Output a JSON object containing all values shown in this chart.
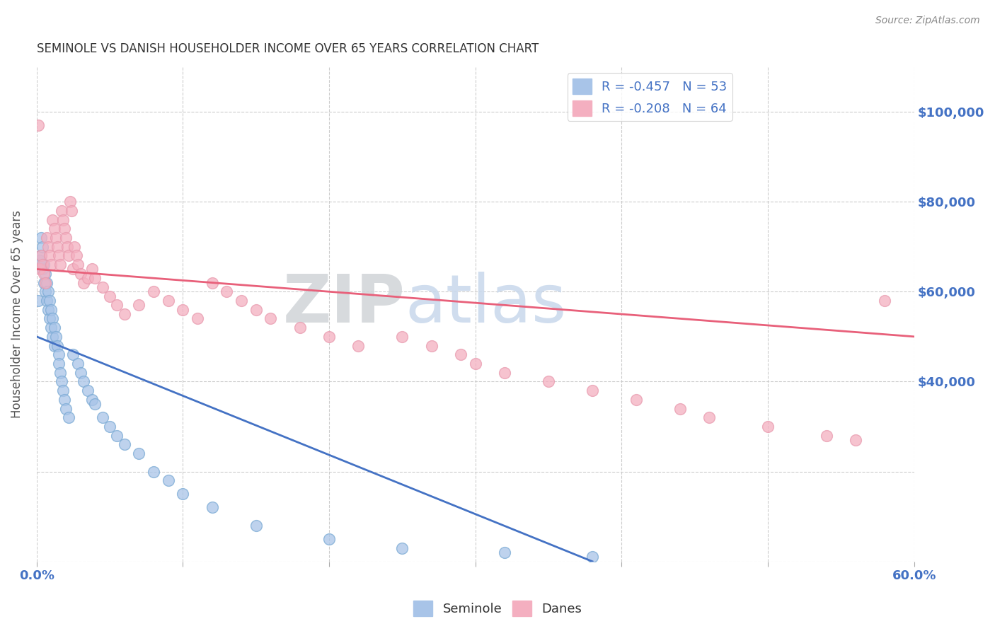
{
  "title": "SEMINOLE VS DANISH HOUSEHOLDER INCOME OVER 65 YEARS CORRELATION CHART",
  "source": "Source: ZipAtlas.com",
  "ylabel": "Householder Income Over 65 years",
  "xlim": [
    0.0,
    0.6
  ],
  "ylim": [
    0,
    110000
  ],
  "seminole_color": "#a8c4e8",
  "danes_color": "#f4afc0",
  "seminole_edge_color": "#7aaad4",
  "danes_edge_color": "#e89aae",
  "seminole_line_color": "#4472c4",
  "danes_line_color": "#e8607a",
  "background_color": "#ffffff",
  "seminole_x": [
    0.001,
    0.002,
    0.003,
    0.003,
    0.004,
    0.004,
    0.005,
    0.005,
    0.006,
    0.006,
    0.007,
    0.007,
    0.008,
    0.008,
    0.009,
    0.009,
    0.01,
    0.01,
    0.011,
    0.011,
    0.012,
    0.012,
    0.013,
    0.014,
    0.015,
    0.015,
    0.016,
    0.017,
    0.018,
    0.019,
    0.02,
    0.022,
    0.025,
    0.028,
    0.03,
    0.032,
    0.035,
    0.038,
    0.04,
    0.045,
    0.05,
    0.055,
    0.06,
    0.07,
    0.08,
    0.09,
    0.1,
    0.12,
    0.15,
    0.2,
    0.25,
    0.32,
    0.38
  ],
  "seminole_y": [
    58000,
    67000,
    68000,
    72000,
    65000,
    70000,
    62000,
    66000,
    60000,
    64000,
    58000,
    62000,
    56000,
    60000,
    54000,
    58000,
    52000,
    56000,
    50000,
    54000,
    48000,
    52000,
    50000,
    48000,
    46000,
    44000,
    42000,
    40000,
    38000,
    36000,
    34000,
    32000,
    46000,
    44000,
    42000,
    40000,
    38000,
    36000,
    35000,
    32000,
    30000,
    28000,
    26000,
    24000,
    20000,
    18000,
    15000,
    12000,
    8000,
    5000,
    3000,
    2000,
    1000
  ],
  "danes_x": [
    0.001,
    0.002,
    0.003,
    0.004,
    0.005,
    0.006,
    0.007,
    0.008,
    0.009,
    0.01,
    0.011,
    0.012,
    0.013,
    0.014,
    0.015,
    0.016,
    0.017,
    0.018,
    0.019,
    0.02,
    0.021,
    0.022,
    0.023,
    0.024,
    0.025,
    0.026,
    0.027,
    0.028,
    0.03,
    0.032,
    0.035,
    0.038,
    0.04,
    0.045,
    0.05,
    0.055,
    0.06,
    0.07,
    0.08,
    0.09,
    0.1,
    0.11,
    0.12,
    0.13,
    0.14,
    0.15,
    0.16,
    0.18,
    0.2,
    0.22,
    0.25,
    0.27,
    0.29,
    0.3,
    0.32,
    0.35,
    0.38,
    0.41,
    0.44,
    0.46,
    0.5,
    0.54,
    0.56,
    0.58
  ],
  "danes_y": [
    97000,
    65000,
    68000,
    66000,
    64000,
    62000,
    72000,
    70000,
    68000,
    66000,
    76000,
    74000,
    72000,
    70000,
    68000,
    66000,
    78000,
    76000,
    74000,
    72000,
    70000,
    68000,
    80000,
    78000,
    65000,
    70000,
    68000,
    66000,
    64000,
    62000,
    63000,
    65000,
    63000,
    61000,
    59000,
    57000,
    55000,
    57000,
    60000,
    58000,
    56000,
    54000,
    62000,
    60000,
    58000,
    56000,
    54000,
    52000,
    50000,
    48000,
    50000,
    48000,
    46000,
    44000,
    42000,
    40000,
    38000,
    36000,
    34000,
    32000,
    30000,
    28000,
    27000,
    58000
  ]
}
